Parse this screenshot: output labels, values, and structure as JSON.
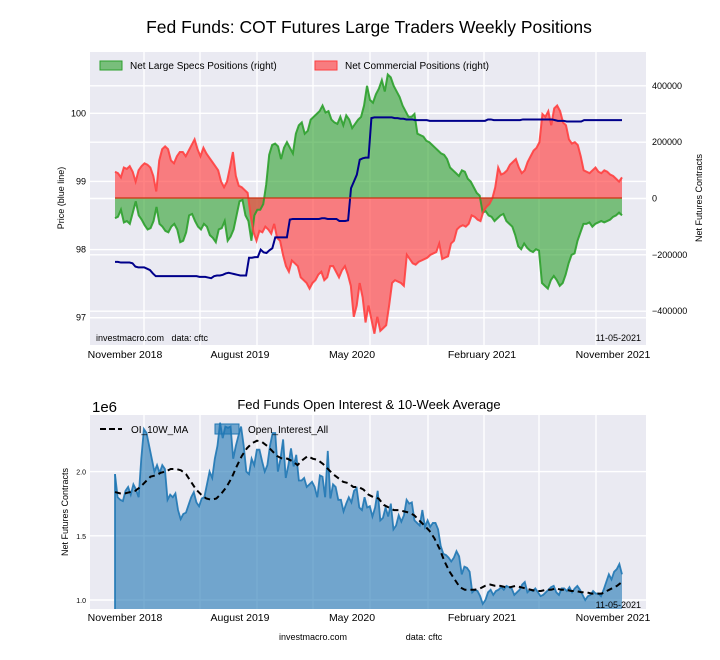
{
  "chart_data": [
    {
      "type": "area",
      "title": "Fed Funds: COT Futures Large Traders Weekly Positions",
      "xlabel": "",
      "ylabel_left": "Price (blue line)",
      "ylabel_right": "Net Futures Contracts",
      "x_ticks": [
        "November 2018",
        "August 2019",
        "May 2020",
        "February 2021",
        "November 2021"
      ],
      "y_left_ticks": [
        "100",
        "99",
        "98",
        "97"
      ],
      "y_right_ticks": [
        "400000",
        "200000",
        "0",
        "−200000",
        "−400000"
      ],
      "ylim_left": [
        96.6,
        100.9
      ],
      "ylim_right": [
        -520000,
        520000
      ],
      "grid": true,
      "legend": {
        "placement": "top-left",
        "entries": [
          "Net Large Specs Positions (right)",
          "Net Commercial Positions (right)"
        ]
      },
      "watermark": "investmacro.com   data: cftc",
      "date_label": "11-05-2021",
      "x_start": "2018-08",
      "x_end": "2021-11-05",
      "series": [
        {
          "name": "Net Large Specs Positions (right)",
          "color": "#2ca02c",
          "values": [
            -70000,
            -65000,
            -40000,
            -85000,
            -80000,
            -90000,
            -50000,
            -10000,
            -60000,
            -75000,
            -95000,
            -110000,
            -105000,
            -80000,
            -30000,
            -90000,
            -100000,
            -115000,
            -120000,
            -100000,
            -90000,
            -110000,
            -155000,
            -150000,
            -120000,
            -60000,
            -55000,
            -80000,
            -100000,
            -110000,
            -90000,
            -100000,
            -130000,
            -140000,
            -155000,
            -110000,
            -105000,
            -80000,
            -150000,
            -135000,
            -110000,
            -60000,
            -10000,
            -5000,
            -60000,
            -80000,
            -150000,
            -60000,
            -40000,
            -40000,
            -20000,
            50000,
            155000,
            190000,
            195000,
            185000,
            140000,
            180000,
            200000,
            180000,
            160000,
            230000,
            260000,
            270000,
            230000,
            240000,
            280000,
            290000,
            300000,
            310000,
            330000,
            305000,
            310000,
            280000,
            270000,
            265000,
            290000,
            260000,
            295000,
            280000,
            250000,
            265000,
            280000,
            290000,
            330000,
            400000,
            350000,
            340000,
            370000,
            390000,
            420000,
            380000,
            440000,
            430000,
            400000,
            380000,
            360000,
            330000,
            310000,
            290000,
            290000,
            300000,
            230000,
            225000,
            220000,
            205000,
            200000,
            190000,
            180000,
            170000,
            160000,
            155000,
            140000,
            110000,
            100000,
            90000,
            80000,
            100000,
            95000,
            70000,
            60000,
            40000,
            20000,
            10000,
            -50000,
            -45000,
            -60000,
            -65000,
            -80000,
            -70000,
            -60000,
            -55000,
            -80000,
            -90000,
            -100000,
            -130000,
            -170000,
            -180000,
            -160000,
            -175000,
            -185000,
            -190000,
            -180000,
            -185000,
            -300000,
            -310000,
            -320000,
            -290000,
            -275000,
            -290000,
            -310000,
            -300000,
            -270000,
            -230000,
            -200000,
            -195000,
            -150000,
            -120000,
            -90000,
            -90000,
            -85000,
            -100000,
            -90000,
            -85000,
            -80000,
            -85000,
            -80000,
            -75000,
            -65000,
            -60000,
            -50000,
            -60000
          ]
        },
        {
          "name": "Net Commercial Positions (right)",
          "color": "#ff4040",
          "values": [
            95000,
            90000,
            75000,
            110000,
            105000,
            115000,
            95000,
            60000,
            100000,
            115000,
            125000,
            120000,
            110000,
            80000,
            25000,
            135000,
            175000,
            185000,
            175000,
            135000,
            125000,
            150000,
            165000,
            165000,
            150000,
            170000,
            190000,
            210000,
            175000,
            150000,
            180000,
            160000,
            145000,
            130000,
            115000,
            100000,
            60000,
            40000,
            60000,
            110000,
            165000,
            80000,
            45000,
            40000,
            30000,
            20000,
            -60000,
            -120000,
            -150000,
            -115000,
            -120000,
            -100000,
            -110000,
            -125000,
            -90000,
            -140000,
            -150000,
            -200000,
            -240000,
            -260000,
            -220000,
            -230000,
            -240000,
            -280000,
            -290000,
            -300000,
            -320000,
            -300000,
            -290000,
            -270000,
            -260000,
            -290000,
            -280000,
            -240000,
            -240000,
            -260000,
            -280000,
            -255000,
            -240000,
            -270000,
            -310000,
            -420000,
            -380000,
            -300000,
            -350000,
            -440000,
            -380000,
            -430000,
            -480000,
            -420000,
            -470000,
            -460000,
            -450000,
            -380000,
            -300000,
            -290000,
            -295000,
            -300000,
            -310000,
            -200000,
            -215000,
            -230000,
            -235000,
            -225000,
            -220000,
            -215000,
            -210000,
            -200000,
            -195000,
            -190000,
            -160000,
            -215000,
            -210000,
            -205000,
            -160000,
            -150000,
            -110000,
            -100000,
            -95000,
            -100000,
            -90000,
            -60000,
            -65000,
            -75000,
            -80000,
            -45000,
            -30000,
            -20000,
            0,
            40000,
            110000,
            85000,
            90000,
            100000,
            120000,
            130000,
            140000,
            110000,
            90000,
            100000,
            130000,
            150000,
            170000,
            180000,
            200000,
            300000,
            290000,
            310000,
            260000,
            320000,
            330000,
            310000,
            270000,
            260000,
            210000,
            195000,
            200000,
            190000,
            150000,
            100000,
            95000,
            90000,
            100000,
            110000,
            95000,
            90000,
            100000,
            95000,
            85000,
            80000,
            70000,
            60000,
            75000
          ]
        },
        {
          "name": "Price (blue line)",
          "color": "#00008b",
          "axis": "left",
          "values": [
            97.82,
            97.82,
            97.81,
            97.81,
            97.81,
            97.81,
            97.8,
            97.75,
            97.74,
            97.74,
            97.74,
            97.72,
            97.7,
            97.65,
            97.61,
            97.61,
            97.61,
            97.61,
            97.61,
            97.61,
            97.61,
            97.61,
            97.61,
            97.61,
            97.61,
            97.61,
            97.61,
            97.61,
            97.61,
            97.6,
            97.6,
            97.6,
            97.59,
            97.58,
            97.61,
            97.62,
            97.62,
            97.63,
            97.65,
            97.66,
            97.65,
            97.64,
            97.63,
            97.62,
            97.62,
            97.62,
            97.88,
            97.88,
            97.89,
            97.89,
            98.0,
            97.96,
            97.95,
            97.99,
            98.02,
            98.18,
            98.18,
            98.18,
            98.18,
            98.18,
            98.44,
            98.45,
            98.45,
            98.45,
            98.45,
            98.45,
            98.45,
            98.45,
            98.45,
            98.45,
            98.45,
            98.46,
            98.46,
            98.45,
            98.45,
            98.45,
            98.45,
            98.42,
            98.42,
            98.42,
            98.43,
            98.9,
            99.0,
            99.1,
            99.32,
            99.34,
            99.35,
            99.35,
            99.93,
            99.94,
            99.94,
            99.94,
            99.94,
            99.94,
            99.94,
            99.94,
            99.93,
            99.93,
            99.92,
            99.92,
            99.91,
            99.91,
            99.91,
            99.9,
            99.9,
            99.9,
            99.9,
            99.9,
            99.89,
            99.89,
            99.89,
            99.89,
            99.89,
            99.89,
            99.89,
            99.89,
            99.89,
            99.89,
            99.89,
            99.89,
            99.89,
            99.89,
            99.89,
            99.89,
            99.89,
            99.89,
            99.89,
            99.89,
            99.91,
            99.91,
            99.9,
            99.9,
            99.9,
            99.9,
            99.9,
            99.9,
            99.9,
            99.9,
            99.9,
            99.9,
            99.91,
            99.91,
            99.91,
            99.91,
            99.91,
            99.91,
            99.91,
            99.91,
            99.91,
            99.91,
            99.91,
            99.9,
            99.89,
            99.89,
            99.89,
            99.88,
            99.88,
            99.88,
            99.88,
            99.88,
            99.88,
            99.9,
            99.9,
            99.9,
            99.9,
            99.9,
            99.9,
            99.9,
            99.9,
            99.9,
            99.9,
            99.9,
            99.9,
            99.9,
            99.9
          ]
        }
      ]
    },
    {
      "type": "area",
      "title": "Fed Funds Open Interest & 10-Week Average",
      "xlabel": "",
      "ylabel": "Net Futures Contracts",
      "y_offset_label": "1e6",
      "x_ticks": [
        "November 2018",
        "August 2019",
        "May 2020",
        "February 2021",
        "November 2021"
      ],
      "y_ticks": [
        "2.0",
        "1.5",
        "1.0"
      ],
      "ylim": [
        0.93,
        2.44
      ],
      "grid": true,
      "legend": {
        "placement": "top-left",
        "entries": [
          "OI_10W_MA",
          "Open_Interest_All"
        ]
      },
      "date_label": "11-05-2021",
      "footer": {
        "left": "investmacro.com",
        "right": "data: cftc"
      },
      "series": [
        {
          "name": "Open_Interest_All",
          "color": "#1f77b4",
          "values": [
            1.98,
            1.8,
            1.78,
            1.77,
            1.85,
            1.88,
            1.82,
            1.9,
            1.86,
            1.8,
            2.1,
            2.33,
            2.3,
            2.2,
            2.1,
            2.0,
            2.05,
            1.99,
            2.05,
            2.02,
            1.78,
            1.82,
            1.8,
            1.83,
            1.7,
            1.63,
            1.67,
            1.68,
            1.74,
            1.8,
            1.84,
            1.76,
            1.73,
            1.79,
            1.8,
            1.9,
            2.0,
            1.95,
            2.1,
            2.2,
            2.38,
            2.26,
            2.35,
            2.34,
            2.35,
            2.1,
            2.2,
            2.28,
            2.35,
            2.2,
            2.0,
            1.98,
            2.1,
            2.05,
            2.17,
            2.17,
            2.08,
            2.0,
            2.05,
            2.2,
            2.3,
            2.3,
            2.0,
            2.1,
            2.25,
            1.95,
            2.05,
            2.18,
            2.04,
            2.13,
            1.93,
            1.93,
            1.95,
            1.88,
            1.9,
            1.92,
            1.88,
            1.8,
            1.97,
            1.96,
            1.8,
            2.16,
            1.79,
            1.9,
            1.88,
            1.78,
            1.78,
            1.69,
            1.75,
            1.8,
            1.76,
            1.85,
            1.87,
            1.72,
            1.7,
            1.8,
            1.72,
            1.73,
            1.65,
            1.72,
            1.85,
            1.62,
            1.64,
            1.72,
            1.65,
            1.75,
            1.55,
            1.58,
            1.66,
            1.61,
            1.66,
            1.78,
            1.75,
            1.76,
            1.62,
            1.6,
            1.58,
            1.7,
            1.57,
            1.62,
            1.57,
            1.6,
            1.6,
            1.55,
            1.42,
            1.36,
            1.35,
            1.33,
            1.3,
            1.33,
            1.38,
            1.34,
            1.2,
            1.26,
            1.25,
            1.22,
            1.06,
            1.08,
            1.07,
            1.03,
            0.97,
            1.0,
            1.06,
            1.08,
            1.04,
            1.07,
            1.08,
            1.1,
            1.08,
            1.11,
            1.1,
            1.09,
            1.04,
            1.06,
            1.08,
            1.12,
            1.14,
            1.06,
            1.08,
            1.07,
            1.09,
            1.06,
            1.03,
            1.04,
            1.06,
            1.08,
            1.1,
            1.11,
            1.06,
            1.04,
            1.09,
            1.09,
            1.07,
            1.1,
            1.06,
            1.09,
            1.11,
            1.08,
            1.04,
            1.0,
            1.03,
            1.04,
            1.07,
            1.05,
            1.05,
            1.03,
            1.08,
            1.14,
            1.2,
            1.16,
            1.22,
            1.24,
            1.28,
            1.2
          ]
        },
        {
          "name": "OI_10W_MA",
          "color": "#000000",
          "values": [
            1.84,
            1.83,
            1.83,
            1.84,
            1.85,
            1.88,
            1.92,
            1.96,
            1.97,
            1.99,
            2.0,
            2.02,
            2.02,
            2.01,
            1.98,
            1.92,
            1.86,
            1.82,
            1.79,
            1.78,
            1.79,
            1.83,
            1.88,
            1.95,
            2.04,
            2.12,
            2.18,
            2.22,
            2.24,
            2.23,
            2.2,
            2.16,
            2.12,
            2.1,
            2.1,
            2.08,
            2.05,
            2.09,
            2.12,
            2.1,
            2.09,
            2.06,
            2.02,
            1.98,
            1.95,
            1.92,
            1.91,
            1.88,
            1.88,
            1.86,
            1.82,
            1.8,
            1.79,
            1.74,
            1.72,
            1.7,
            1.7,
            1.69,
            1.68,
            1.66,
            1.62,
            1.58,
            1.54,
            1.48,
            1.4,
            1.3,
            1.22,
            1.16,
            1.1,
            1.08,
            1.08,
            1.08,
            1.09,
            1.11,
            1.12,
            1.11,
            1.11,
            1.1,
            1.1,
            1.11,
            1.1,
            1.09,
            1.08,
            1.07,
            1.07,
            1.08,
            1.08,
            1.09,
            1.08,
            1.08,
            1.07,
            1.07,
            1.06,
            1.06,
            1.05,
            1.05,
            1.05,
            1.07,
            1.09,
            1.11,
            1.14
          ]
        }
      ]
    }
  ]
}
